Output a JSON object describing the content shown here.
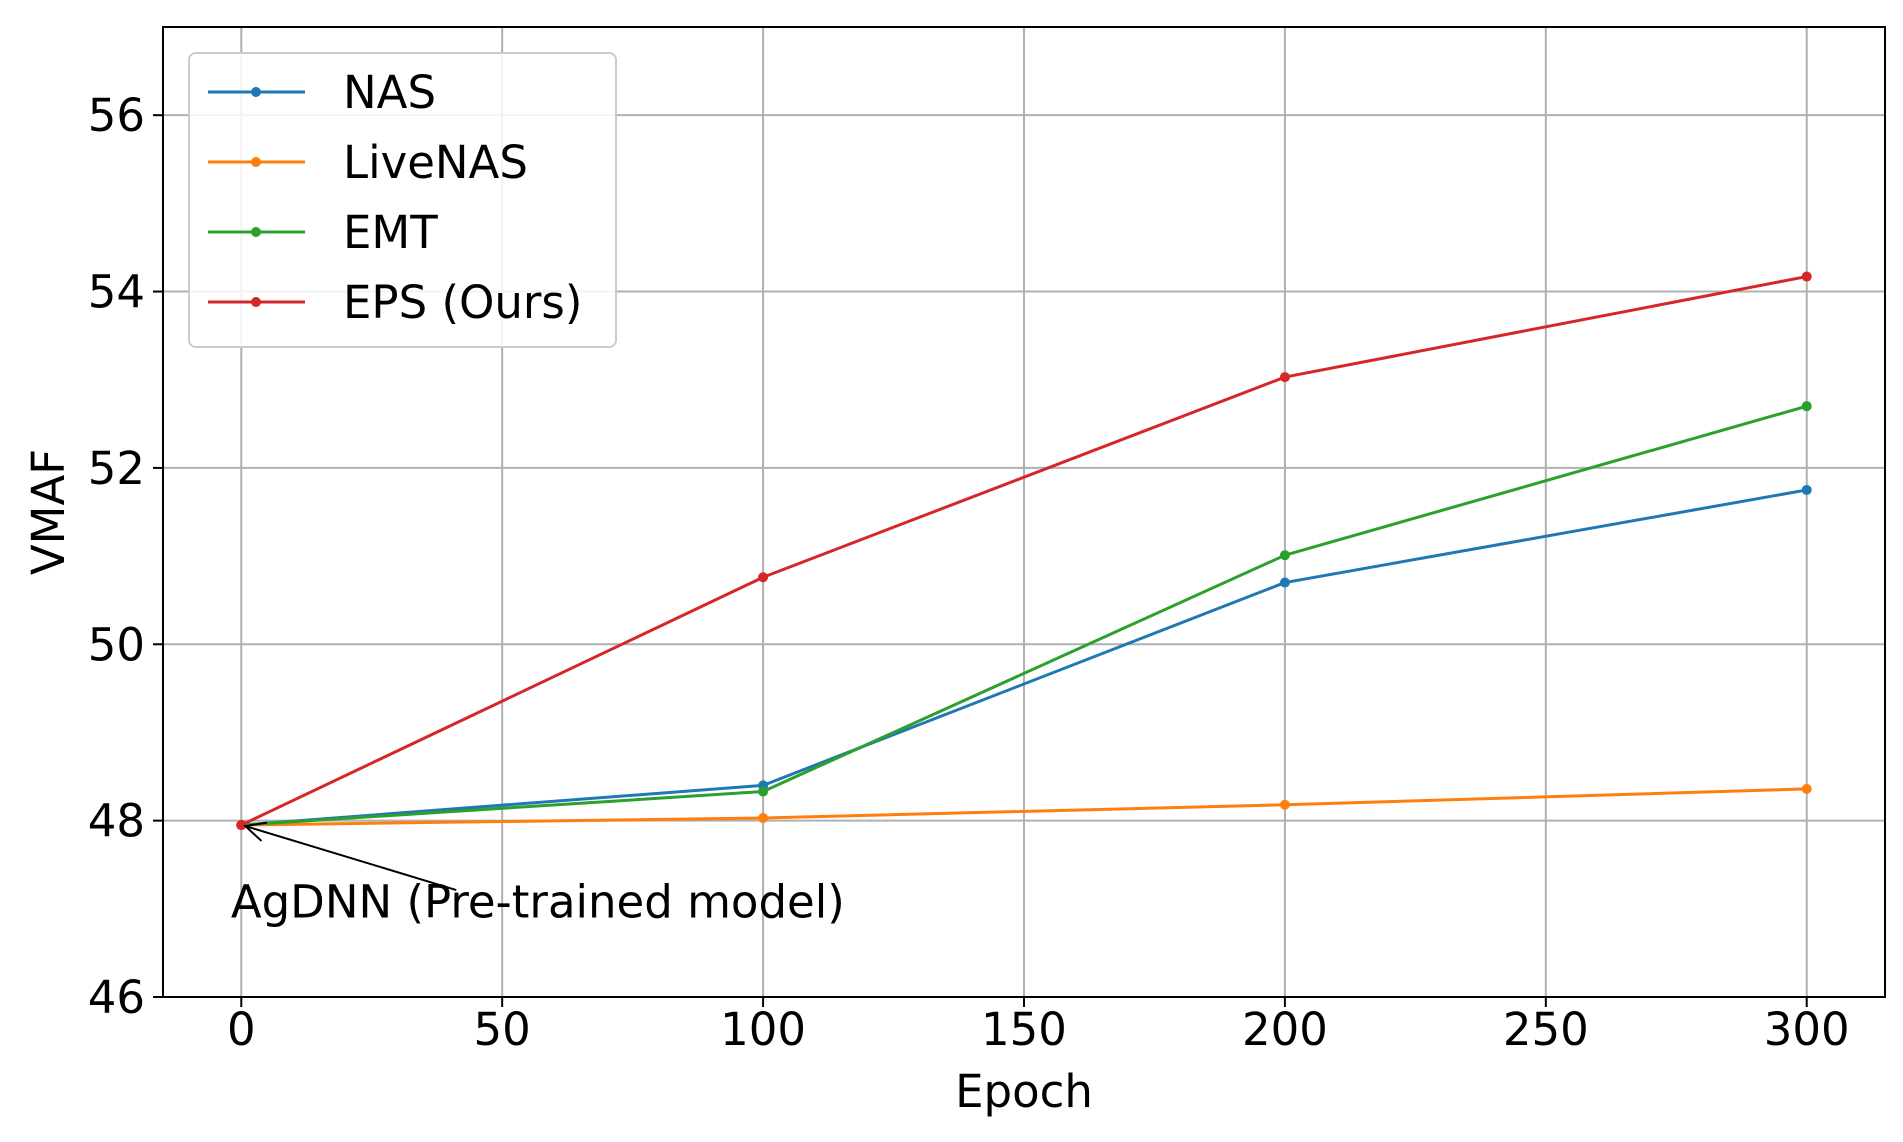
{
  "chart_data": {
    "type": "line",
    "title": "",
    "xlabel": "Epoch",
    "ylabel": "VMAF",
    "x": [
      0,
      100,
      200,
      300
    ],
    "xlim": [
      -15,
      315
    ],
    "ylim": [
      46,
      57
    ],
    "xticks": [
      0,
      50,
      100,
      150,
      200,
      250,
      300
    ],
    "yticks": [
      46,
      48,
      50,
      52,
      54,
      56
    ],
    "grid": true,
    "legend_position": "top-left",
    "series": [
      {
        "name": "NAS",
        "color": "#1f77b4",
        "values": [
          47.95,
          48.4,
          50.7,
          51.75
        ]
      },
      {
        "name": "LiveNAS",
        "color": "#ff7f0e",
        "values": [
          47.95,
          48.03,
          48.18,
          48.36
        ]
      },
      {
        "name": "EMT",
        "color": "#2ca02c",
        "values": [
          47.95,
          48.33,
          51.01,
          52.7
        ]
      },
      {
        "name": "EPS (Ours)",
        "color": "#d62728",
        "values": [
          47.95,
          50.76,
          53.03,
          54.17
        ]
      }
    ],
    "annotation": {
      "text": "AgDNN (Pre-trained model)",
      "point": [
        0,
        47.95
      ],
      "text_at": [
        -2,
        46.9
      ]
    }
  }
}
